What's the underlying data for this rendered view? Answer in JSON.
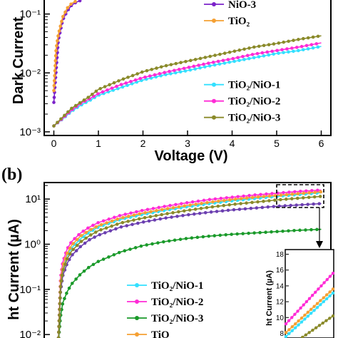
{
  "chart_data": [
    {
      "panel_label": "",
      "type": "line",
      "xlabel": "Voltage (V)",
      "ylabel": "Dark Current",
      "x_ticks": [
        "0",
        "1",
        "2",
        "3",
        "4",
        "5",
        "6"
      ],
      "y_ticks": [
        "10⁻³",
        "10⁻²",
        "10⁻¹"
      ],
      "xlim": [
        -0.2,
        6.2
      ],
      "ylim_log10": [
        -3.05,
        -0.75
      ],
      "legend": {
        "placement": "right"
      },
      "series": [
        {
          "name": "NiO-3",
          "color": "#7b22c9",
          "points": [
            [
              0,
              -2.5
            ],
            [
              0.1,
              -1.45
            ],
            [
              0.2,
              -1.1
            ],
            [
              0.3,
              -0.95
            ],
            [
              0.4,
              -0.85
            ],
            [
              0.5,
              -0.8
            ],
            [
              0.6,
              -0.77
            ]
          ]
        },
        {
          "name": "TiO₂",
          "color": "#f5a033",
          "points": [
            [
              0,
              -2.3
            ],
            [
              0.05,
              -1.6
            ],
            [
              0.1,
              -1.35
            ],
            [
              0.2,
              -1.05
            ],
            [
              0.3,
              -0.9
            ],
            [
              0.4,
              -0.82
            ],
            [
              0.5,
              -0.78
            ]
          ]
        },
        {
          "name": "TiO₂/NiO-1",
          "color": "#33e0ff",
          "points": [
            [
              0,
              -2.9
            ],
            [
              0.2,
              -2.78
            ],
            [
              0.4,
              -2.65
            ],
            [
              0.6,
              -2.55
            ],
            [
              0.8,
              -2.47
            ],
            [
              1.0,
              -2.38
            ],
            [
              1.5,
              -2.25
            ],
            [
              2,
              -2.12
            ],
            [
              2.5,
              -2.03
            ],
            [
              3,
              -1.96
            ],
            [
              3.5,
              -1.88
            ],
            [
              4,
              -1.81
            ],
            [
              4.5,
              -1.74
            ],
            [
              5,
              -1.67
            ],
            [
              5.5,
              -1.62
            ],
            [
              6,
              -1.55
            ]
          ]
        },
        {
          "name": "TiO₂/NiO-2",
          "color": "#ff2bd6",
          "points": [
            [
              0,
              -2.9
            ],
            [
              0.2,
              -2.77
            ],
            [
              0.4,
              -2.63
            ],
            [
              0.6,
              -2.52
            ],
            [
              0.8,
              -2.44
            ],
            [
              1.0,
              -2.35
            ],
            [
              1.5,
              -2.2
            ],
            [
              2,
              -2.08
            ],
            [
              2.5,
              -1.99
            ],
            [
              3,
              -1.91
            ],
            [
              3.5,
              -1.83
            ],
            [
              4,
              -1.76
            ],
            [
              4.5,
              -1.68
            ],
            [
              5,
              -1.62
            ],
            [
              5.5,
              -1.56
            ],
            [
              6,
              -1.49
            ]
          ]
        },
        {
          "name": "TiO₂/NiO-3",
          "color": "#8a8a2a",
          "points": [
            [
              0,
              -2.9
            ],
            [
              0.2,
              -2.75
            ],
            [
              0.4,
              -2.6
            ],
            [
              0.6,
              -2.5
            ],
            [
              0.8,
              -2.4
            ],
            [
              1.0,
              -2.28
            ],
            [
              1.5,
              -2.12
            ],
            [
              2,
              -1.98
            ],
            [
              2.5,
              -1.88
            ],
            [
              3,
              -1.8
            ],
            [
              3.5,
              -1.72
            ],
            [
              4,
              -1.64
            ],
            [
              4.5,
              -1.56
            ],
            [
              5,
              -1.5
            ],
            [
              5.5,
              -1.43
            ],
            [
              6,
              -1.37
            ]
          ]
        }
      ]
    },
    {
      "panel_label": "(b)",
      "type": "line",
      "xlabel": "",
      "ylabel": "ht Current (µA)",
      "y_ticks": [
        "10⁻²",
        "10⁻¹",
        "10⁰",
        "10¹"
      ],
      "xlim": [
        -0.2,
        6.2
      ],
      "ylim_log10": [
        -2.25,
        1.35
      ],
      "legend": {
        "placement": "bottom-left"
      },
      "series": [
        {
          "name": "TiO₂/NiO-1",
          "color": "#33e0ff",
          "points": [
            [
              0.1,
              -2.2
            ],
            [
              0.15,
              -0.9
            ],
            [
              0.2,
              -0.55
            ],
            [
              0.3,
              -0.25
            ],
            [
              0.4,
              -0.08
            ],
            [
              0.6,
              0.12
            ],
            [
              0.8,
              0.27
            ],
            [
              1.0,
              0.38
            ],
            [
              1.5,
              0.55
            ],
            [
              2,
              0.66
            ],
            [
              2.5,
              0.75
            ],
            [
              3,
              0.83
            ],
            [
              3.5,
              0.9
            ],
            [
              4,
              0.96
            ],
            [
              4.5,
              1.01
            ],
            [
              5,
              1.06
            ],
            [
              5.5,
              1.1
            ],
            [
              6,
              1.14
            ]
          ]
        },
        {
          "name": "TiO₂/NiO-2",
          "color": "#ff2bd6",
          "points": [
            [
              0.1,
              -2.2
            ],
            [
              0.15,
              -0.75
            ],
            [
              0.2,
              -0.4
            ],
            [
              0.3,
              -0.1
            ],
            [
              0.4,
              0.06
            ],
            [
              0.6,
              0.25
            ],
            [
              0.8,
              0.38
            ],
            [
              1.0,
              0.48
            ],
            [
              1.5,
              0.64
            ],
            [
              2,
              0.75
            ],
            [
              2.5,
              0.84
            ],
            [
              3,
              0.92
            ],
            [
              3.5,
              0.99
            ],
            [
              4,
              1.04
            ],
            [
              4.5,
              1.09
            ],
            [
              5,
              1.13
            ],
            [
              5.5,
              1.17
            ],
            [
              6,
              1.2
            ]
          ]
        },
        {
          "name": "TiO₂/NiO-3",
          "color": "#1a9a2a",
          "points": [
            [
              0.1,
              -2.2
            ],
            [
              0.15,
              -1.6
            ],
            [
              0.2,
              -1.3
            ],
            [
              0.3,
              -1.05
            ],
            [
              0.4,
              -0.88
            ],
            [
              0.6,
              -0.66
            ],
            [
              0.8,
              -0.5
            ],
            [
              1.0,
              -0.38
            ],
            [
              1.5,
              -0.17
            ],
            [
              2,
              -0.03
            ],
            [
              2.5,
              0.06
            ],
            [
              3,
              0.13
            ],
            [
              3.5,
              0.18
            ],
            [
              4,
              0.22
            ],
            [
              4.5,
              0.25
            ],
            [
              5,
              0.28
            ],
            [
              5.5,
              0.31
            ],
            [
              6,
              0.33
            ]
          ]
        },
        {
          "name": "TiO",
          "color": "#f5a033",
          "points": [
            [
              0.1,
              -2.2
            ],
            [
              0.15,
              -0.85
            ],
            [
              0.2,
              -0.5
            ],
            [
              0.3,
              -0.2
            ],
            [
              0.4,
              -0.02
            ],
            [
              0.6,
              0.18
            ],
            [
              0.8,
              0.31
            ],
            [
              1.0,
              0.41
            ],
            [
              1.5,
              0.58
            ],
            [
              2,
              0.69
            ],
            [
              2.5,
              0.78
            ],
            [
              3,
              0.86
            ],
            [
              3.5,
              0.93
            ],
            [
              4,
              0.99
            ],
            [
              4.5,
              1.04
            ],
            [
              5,
              1.08
            ],
            [
              5.5,
              1.12
            ],
            [
              6,
              1.16
            ]
          ]
        },
        {
          "name": "",
          "color": "#6b3fb0",
          "points": [
            [
              0.1,
              -2.2
            ],
            [
              0.15,
              -1.05
            ],
            [
              0.2,
              -0.7
            ],
            [
              0.3,
              -0.42
            ],
            [
              0.4,
              -0.25
            ],
            [
              0.6,
              -0.05
            ],
            [
              0.8,
              0.1
            ],
            [
              1.0,
              0.2
            ],
            [
              1.5,
              0.38
            ],
            [
              2,
              0.49
            ],
            [
              2.5,
              0.58
            ],
            [
              3,
              0.65
            ],
            [
              3.5,
              0.71
            ],
            [
              4,
              0.76
            ],
            [
              4.5,
              0.8
            ],
            [
              5,
              0.84
            ],
            [
              5.5,
              0.87
            ],
            [
              6,
              0.9
            ]
          ]
        },
        {
          "name": "",
          "color": "#8a8a2a",
          "points": [
            [
              0.1,
              -2.2
            ],
            [
              0.15,
              -0.95
            ],
            [
              0.2,
              -0.6
            ],
            [
              0.3,
              -0.32
            ],
            [
              0.4,
              -0.15
            ],
            [
              0.6,
              0.05
            ],
            [
              0.8,
              0.19
            ],
            [
              1.0,
              0.3
            ],
            [
              1.5,
              0.47
            ],
            [
              2,
              0.58
            ],
            [
              2.5,
              0.67
            ],
            [
              3,
              0.75
            ],
            [
              3.5,
              0.82
            ],
            [
              4,
              0.88
            ],
            [
              4.5,
              0.93
            ],
            [
              5,
              0.98
            ],
            [
              5.5,
              1.02
            ],
            [
              6,
              1.06
            ]
          ]
        }
      ],
      "inset": {
        "ylabel": "ht Current (µA)",
        "y_ticks": [
          "8",
          "10",
          "12",
          "14",
          "16",
          "18"
        ],
        "ylim": [
          7.5,
          18.5
        ],
        "series": [
          {
            "color": "#ff2bd6",
            "points": [
              [
                0,
                9.2
              ],
              [
                1,
                15.6
              ]
            ]
          },
          {
            "color": "#f5a033",
            "points": [
              [
                0,
                8.1
              ],
              [
                1,
                13.6
              ]
            ]
          },
          {
            "color": "#33e0ff",
            "points": [
              [
                0,
                7.6
              ],
              [
                1,
                13.1
              ]
            ]
          },
          {
            "color": "#8a8a2a",
            "points": [
              [
                0.35,
                7.5
              ],
              [
                1,
                10.2
              ]
            ]
          }
        ]
      }
    }
  ]
}
